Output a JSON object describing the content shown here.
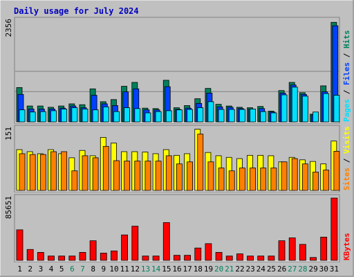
{
  "colors": {
    "background": "#c0c0c0",
    "panel_border": "#808080",
    "title": "#0000c0",
    "hits": "#00805c",
    "files": "#0040ff",
    "pages": "#00e0ff",
    "visits": "#ffff00",
    "sites": "#ff8000",
    "kbytes": "#ff0000",
    "weekend_label": "#00805c",
    "weekday_label": "#000000"
  },
  "chart_data": {
    "type": "bar",
    "title": "Daily usage for July 2024",
    "days": [
      "1",
      "2",
      "3",
      "4",
      "5",
      "6",
      "7",
      "8",
      "9",
      "10",
      "11",
      "12",
      "13",
      "14",
      "15",
      "16",
      "17",
      "18",
      "19",
      "20",
      "21",
      "22",
      "23",
      "24",
      "25",
      "26",
      "27",
      "28",
      "29",
      "30",
      "31"
    ],
    "weekend_days": [
      "6",
      "7",
      "13",
      "14",
      "20",
      "21",
      "27",
      "28"
    ],
    "panels": [
      {
        "id": "requests",
        "ymax_label": "2356",
        "ymax": 2356,
        "legend": [
          "Pages",
          "Files",
          "Hits"
        ],
        "series": [
          {
            "name": "Hits",
            "values": [
              800,
              370,
              370,
              340,
              370,
              420,
              400,
              770,
              470,
              520,
              830,
              920,
              320,
              310,
              970,
              330,
              380,
              540,
              780,
              410,
              370,
              340,
              330,
              360,
              250,
              730,
              920,
              680,
              180,
              840,
              2320
            ]
          },
          {
            "name": "Files",
            "values": [
              640,
              300,
              300,
              300,
              320,
              370,
              330,
              620,
              420,
              380,
              700,
              770,
              280,
              280,
              820,
              290,
              320,
              430,
              670,
              350,
              340,
              310,
              300,
              310,
              230,
              670,
              860,
              640,
              160,
              700,
              2240
            ]
          },
          {
            "name": "Pages",
            "values": [
              280,
              230,
              240,
              260,
              300,
              330,
              300,
              280,
              350,
              240,
              330,
              310,
              210,
              240,
              260,
              280,
              290,
              330,
              470,
              290,
              290,
              290,
              300,
              240,
              210,
              630,
              810,
              600,
              230,
              660,
              620
            ]
          }
        ]
      },
      {
        "id": "visitors",
        "ymax_label": "151",
        "ymax": 151,
        "legend": [
          "Sites",
          "Visits"
        ],
        "series": [
          {
            "name": "Visits",
            "values": [
              100,
              95,
              90,
              100,
              90,
              80,
              98,
              85,
              130,
              116,
              95,
              95,
              94,
              90,
              100,
              86,
              90,
              150,
              93,
              85,
              81,
              78,
              86,
              86,
              85,
              70,
              81,
              75,
              71,
              65,
              121
            ]
          },
          {
            "name": "Sites",
            "values": [
              90,
              88,
              88,
              95,
              95,
              48,
              85,
              80,
              108,
              73,
              72,
              72,
              72,
              72,
              85,
              65,
              70,
              138,
              70,
              55,
              48,
              55,
              55,
              55,
              55,
              70,
              78,
              65,
              45,
              50,
              96
            ]
          }
        ]
      },
      {
        "id": "traffic",
        "ymax_label": "85651",
        "ymax": 85651,
        "legend": [
          "KBytes"
        ],
        "series": [
          {
            "name": "KBytes",
            "values": [
              42000,
              15000,
              11000,
              6000,
              6000,
              6000,
              11000,
              27000,
              10000,
              13000,
              35000,
              47000,
              6000,
              6000,
              52000,
              7000,
              7000,
              17000,
              23000,
              11000,
              6000,
              9000,
              6000,
              6000,
              6000,
              27000,
              31000,
              22000,
              4000,
              32000,
              85651
            ]
          }
        ]
      }
    ]
  }
}
